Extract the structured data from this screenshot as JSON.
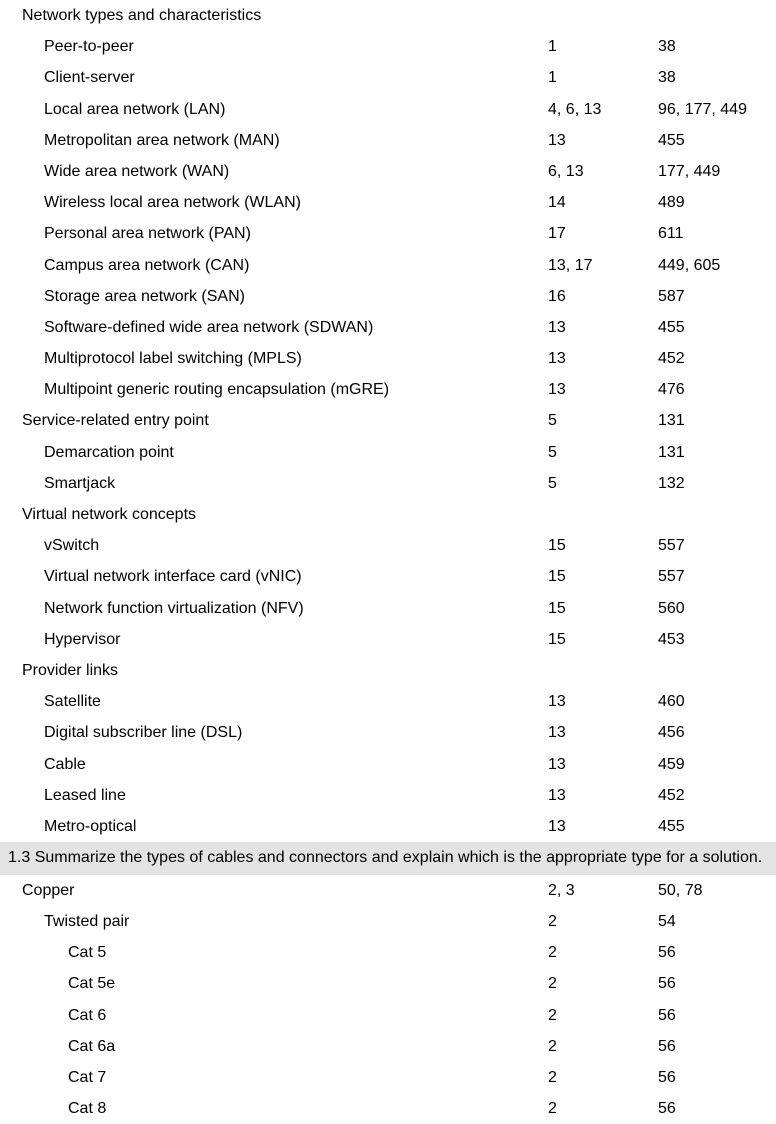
{
  "rows": [
    {
      "type": "row",
      "indent": 0,
      "label": "Network types and characteristics",
      "col1": "",
      "col2": ""
    },
    {
      "type": "row",
      "indent": 1,
      "label": "Peer-to-peer",
      "col1": "1",
      "col2": "38"
    },
    {
      "type": "row",
      "indent": 1,
      "label": "Client-server",
      "col1": "1",
      "col2": "38"
    },
    {
      "type": "row",
      "indent": 1,
      "label": "Local area network (LAN)",
      "col1": "4, 6, 13",
      "col2": "96, 177, 449"
    },
    {
      "type": "row",
      "indent": 1,
      "label": "Metropolitan area network (MAN)",
      "col1": "13",
      "col2": "455"
    },
    {
      "type": "row",
      "indent": 1,
      "label": "Wide area network (WAN)",
      "col1": "6, 13",
      "col2": "177, 449"
    },
    {
      "type": "row",
      "indent": 1,
      "label": "Wireless local area network (WLAN)",
      "col1": "14",
      "col2": "489"
    },
    {
      "type": "row",
      "indent": 1,
      "label": "Personal area network (PAN)",
      "col1": "17",
      "col2": "611"
    },
    {
      "type": "row",
      "indent": 1,
      "label": "Campus area network (CAN)",
      "col1": "13, 17",
      "col2": "449, 605"
    },
    {
      "type": "row",
      "indent": 1,
      "label": "Storage area network (SAN)",
      "col1": "16",
      "col2": "587"
    },
    {
      "type": "row",
      "indent": 1,
      "label": "Software-defined wide area network (SDWAN)",
      "col1": "13",
      "col2": "455"
    },
    {
      "type": "row",
      "indent": 1,
      "label": "Multiprotocol label switching (MPLS)",
      "col1": "13",
      "col2": "452"
    },
    {
      "type": "row",
      "indent": 1,
      "label": "Multipoint generic routing encapsulation (mGRE)",
      "col1": "13",
      "col2": "476"
    },
    {
      "type": "row",
      "indent": 0,
      "label": "Service-related entry point",
      "col1": "5",
      "col2": "131"
    },
    {
      "type": "row",
      "indent": 1,
      "label": "Demarcation point",
      "col1": "5",
      "col2": "131"
    },
    {
      "type": "row",
      "indent": 1,
      "label": "Smartjack",
      "col1": "5",
      "col2": "132"
    },
    {
      "type": "row",
      "indent": 0,
      "label": "Virtual network concepts",
      "col1": "",
      "col2": ""
    },
    {
      "type": "row",
      "indent": 1,
      "label": "vSwitch",
      "col1": "15",
      "col2": "557"
    },
    {
      "type": "row",
      "indent": 1,
      "label": "Virtual network interface card (vNIC)",
      "col1": "15",
      "col2": "557"
    },
    {
      "type": "row",
      "indent": 1,
      "label": "Network function virtualization (NFV)",
      "col1": "15",
      "col2": "560"
    },
    {
      "type": "row",
      "indent": 1,
      "label": "Hypervisor",
      "col1": "15",
      "col2": "453"
    },
    {
      "type": "row",
      "indent": 0,
      "label": "Provider links",
      "col1": "",
      "col2": ""
    },
    {
      "type": "row",
      "indent": 1,
      "label": "Satellite",
      "col1": "13",
      "col2": "460"
    },
    {
      "type": "row",
      "indent": 1,
      "label": "Digital subscriber line (DSL)",
      "col1": "13",
      "col2": "456"
    },
    {
      "type": "row",
      "indent": 1,
      "label": "Cable",
      "col1": "13",
      "col2": "459"
    },
    {
      "type": "row",
      "indent": 1,
      "label": "Leased line",
      "col1": "13",
      "col2": "452"
    },
    {
      "type": "row",
      "indent": 1,
      "label": "Metro-optical",
      "col1": "13",
      "col2": "455"
    },
    {
      "type": "section",
      "label": "1.3 Summarize the types of cables and connectors and explain which is the appropriate type for a solution."
    },
    {
      "type": "row",
      "indent": 0,
      "label": "Copper",
      "col1": "2, 3",
      "col2": "50, 78"
    },
    {
      "type": "row",
      "indent": 1,
      "label": "Twisted pair",
      "col1": "2",
      "col2": "54"
    },
    {
      "type": "row",
      "indent": 2,
      "label": "Cat 5",
      "col1": "2",
      "col2": "56"
    },
    {
      "type": "row",
      "indent": 2,
      "label": "Cat 5e",
      "col1": "2",
      "col2": "56"
    },
    {
      "type": "row",
      "indent": 2,
      "label": "Cat 6",
      "col1": "2",
      "col2": "56"
    },
    {
      "type": "row",
      "indent": 2,
      "label": "Cat 6a",
      "col1": "2",
      "col2": "56"
    },
    {
      "type": "row",
      "indent": 2,
      "label": "Cat 7",
      "col1": "2",
      "col2": "56"
    },
    {
      "type": "row",
      "indent": 2,
      "label": "Cat 8",
      "col1": "2",
      "col2": "56"
    }
  ]
}
